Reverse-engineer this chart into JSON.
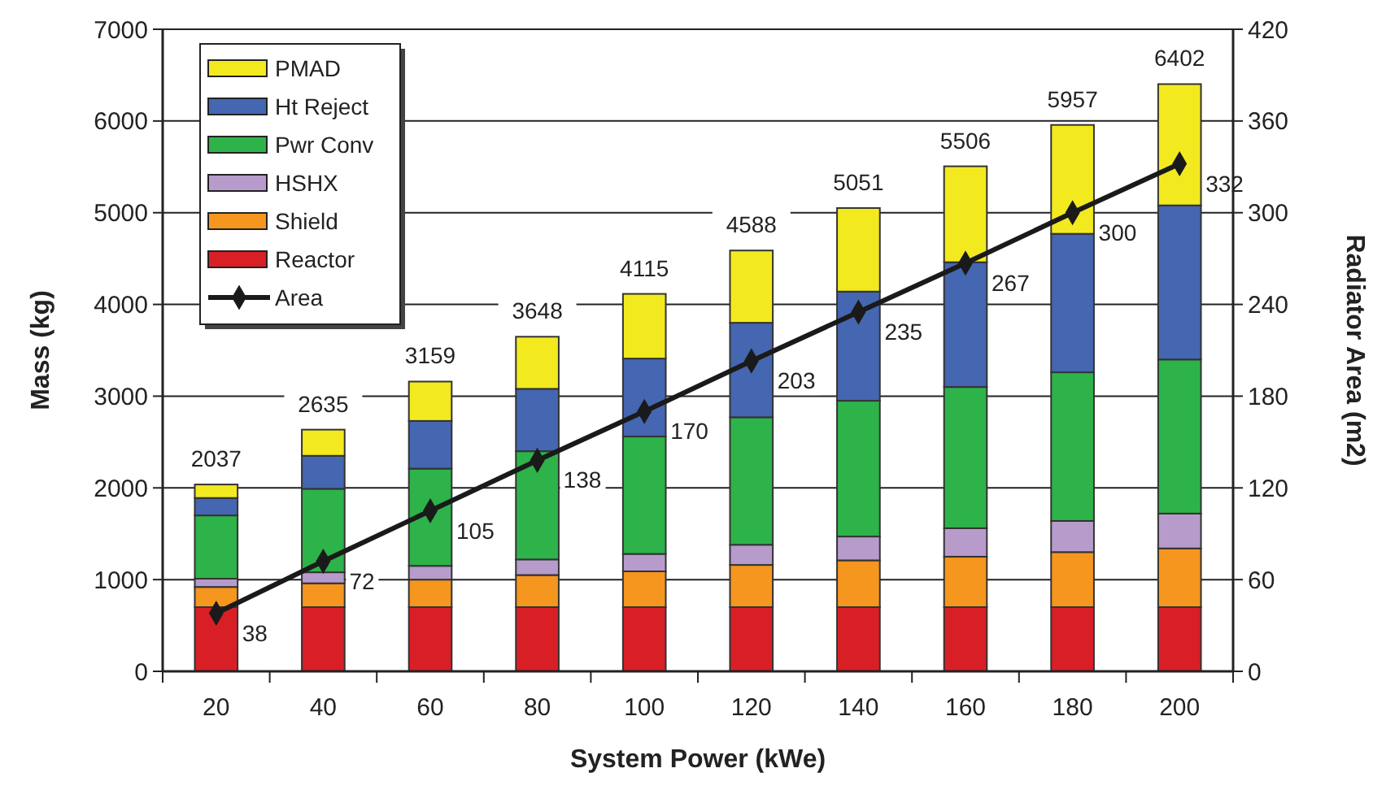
{
  "chart_data": {
    "type": "bar",
    "stacked": true,
    "xlabel": "System Power (kWe)",
    "ylabel": "Mass (kg)",
    "y2label": "Radiator Area (m2)",
    "categories": [
      "20",
      "40",
      "60",
      "80",
      "100",
      "120",
      "140",
      "160",
      "180",
      "200"
    ],
    "ylim": [
      0,
      7000
    ],
    "yticks": [
      0,
      1000,
      2000,
      3000,
      4000,
      5000,
      6000,
      7000
    ],
    "y2lim": [
      0,
      420
    ],
    "y2ticks": [
      0,
      60,
      120,
      180,
      240,
      300,
      360,
      420
    ],
    "grid": "y",
    "legend": "top left",
    "series": [
      {
        "name": "Reactor",
        "color": "#d91f26",
        "values": [
          700,
          700,
          700,
          700,
          700,
          700,
          700,
          700,
          700,
          700
        ]
      },
      {
        "name": "Shield",
        "color": "#f5961f",
        "values": [
          220,
          260,
          300,
          350,
          390,
          460,
          510,
          550,
          600,
          640
        ]
      },
      {
        "name": "HSHX",
        "color": "#b79ccb",
        "values": [
          90,
          120,
          150,
          170,
          190,
          220,
          260,
          310,
          340,
          380
        ]
      },
      {
        "name": "Pwr Conv",
        "color": "#2db34a",
        "values": [
          690,
          910,
          1060,
          1180,
          1280,
          1390,
          1480,
          1540,
          1620,
          1680
        ]
      },
      {
        "name": "Ht Reject",
        "color": "#4566b0",
        "values": [
          190,
          360,
          520,
          680,
          850,
          1030,
          1190,
          1360,
          1510,
          1680
        ]
      },
      {
        "name": "PMAD",
        "color": "#f2ea1f",
        "values": [
          147,
          285,
          429,
          568,
          705,
          788,
          911,
          1046,
          1187,
          1322
        ]
      },
      {
        "name": "Area",
        "type": "line",
        "axis": "y2",
        "color": "#1a1a1a",
        "marker": "diamond",
        "values": [
          38,
          72,
          105,
          138,
          170,
          203,
          235,
          267,
          300,
          332
        ],
        "value_labels": [
          "38",
          "72",
          "105",
          "138",
          "170",
          "203",
          "235",
          "267",
          "300",
          "332"
        ]
      }
    ],
    "totals": [
      "2037",
      "2635",
      "3159",
      "3648",
      "4115",
      "4588",
      "5051",
      "5506",
      "5957",
      "6402"
    ]
  }
}
